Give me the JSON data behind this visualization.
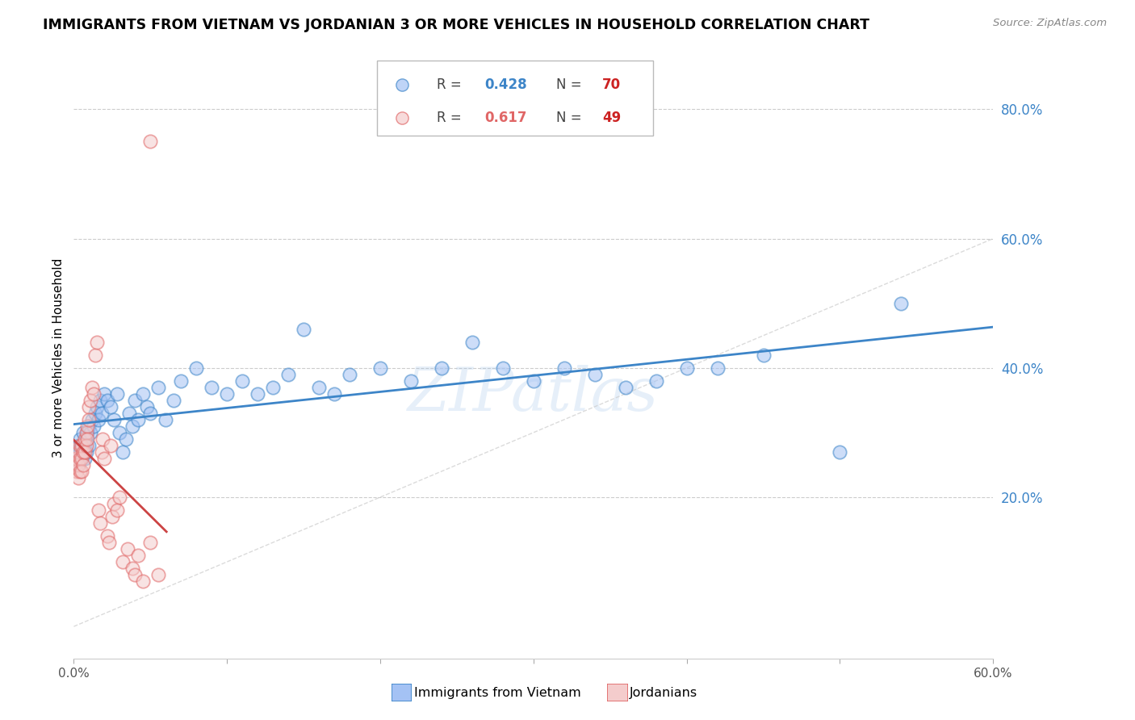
{
  "title": "IMMIGRANTS FROM VIETNAM VS JORDANIAN 3 OR MORE VEHICLES IN HOUSEHOLD CORRELATION CHART",
  "source": "Source: ZipAtlas.com",
  "ylabel": "3 or more Vehicles in Household",
  "xlim": [
    0.0,
    0.6
  ],
  "ylim": [
    -0.05,
    0.88
  ],
  "xticks": [
    0.0,
    0.1,
    0.2,
    0.3,
    0.4,
    0.5,
    0.6
  ],
  "yticks": [
    0.2,
    0.4,
    0.6,
    0.8
  ],
  "ytick_labels": [
    "20.0%",
    "40.0%",
    "60.0%",
    "80.0%"
  ],
  "xtick_labels": [
    "0.0%",
    "",
    "",
    "",
    "",
    "",
    "60.0%"
  ],
  "blue_face_color": "#a4c2f4",
  "blue_edge_color": "#3d85c8",
  "pink_face_color": "#f4cccc",
  "pink_edge_color": "#e06666",
  "blue_R": "0.428",
  "blue_N": "70",
  "pink_R": "0.617",
  "pink_N": "49",
  "label_blue": "Immigrants from Vietnam",
  "label_pink": "Jordanians",
  "watermark": "ZIPatlas",
  "tick_color_y": "#3d85c8",
  "tick_color_x": "#555555",
  "blue_line_color": "#3d85c8",
  "pink_line_color": "#cc4444",
  "diag_color": "#cccccc"
}
